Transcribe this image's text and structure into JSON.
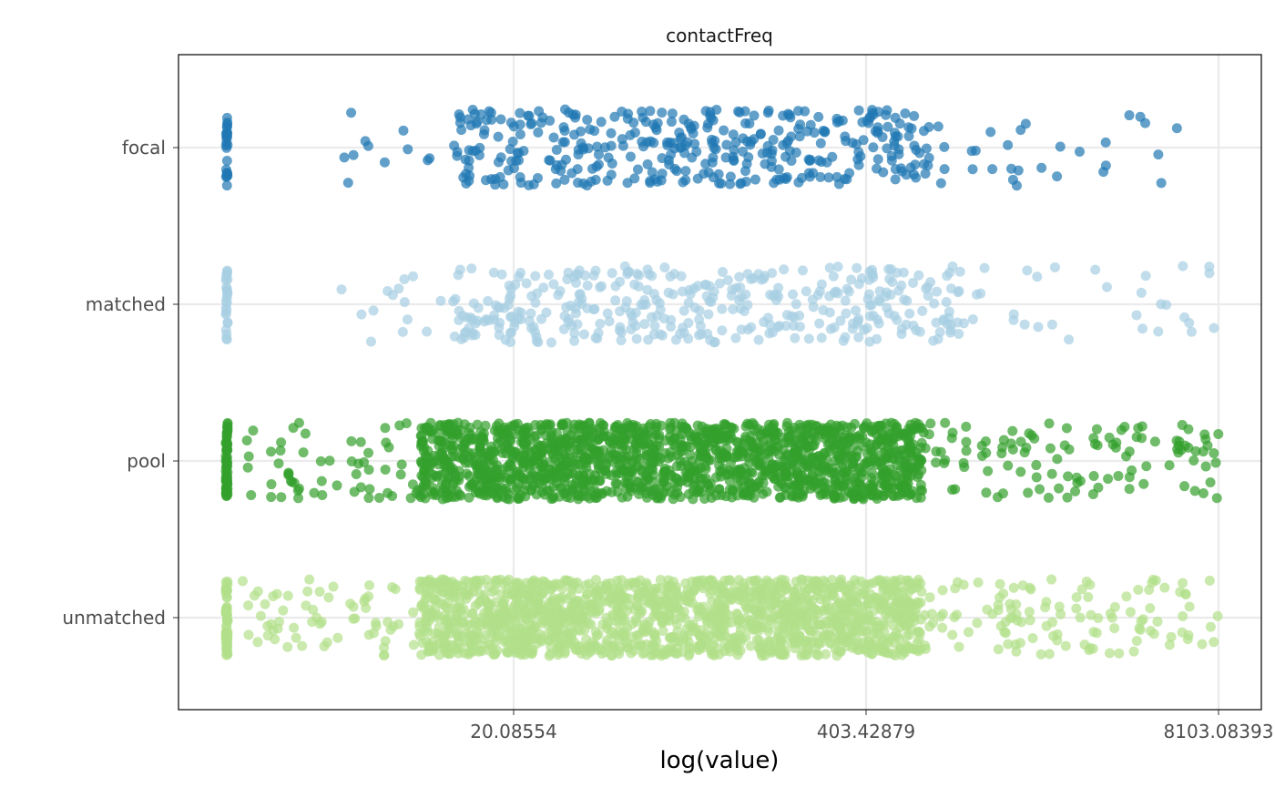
{
  "chart_data": {
    "type": "scatter",
    "title": "contactFreq",
    "xlabel": "log(value)",
    "ylabel": "",
    "x_scale": "log",
    "xlim": [
      1,
      8103.08393
    ],
    "x_ticks": [
      20.08554,
      403.42879,
      8103.08393
    ],
    "x_tick_labels": [
      "20.08554",
      "403.42879",
      "8103.08393"
    ],
    "categories": [
      "focal",
      "matched",
      "pool",
      "unmatched"
    ],
    "grid": true,
    "legend": "none",
    "series": [
      {
        "category": "focal",
        "color": "#1f78b4",
        "zero_count": 24,
        "points": 420,
        "range": [
          4.5,
          6500
        ],
        "core_range": [
          12,
          800
        ]
      },
      {
        "category": "matched",
        "color": "#a6cee3",
        "zero_count": 26,
        "points": 420,
        "range": [
          4.5,
          8103.08393
        ],
        "core_range": [
          12,
          900
        ]
      },
      {
        "category": "pool",
        "color": "#33a02c",
        "zero_count": 60,
        "points": 1800,
        "range": [
          2,
          8103.08393
        ],
        "core_range": [
          9,
          650
        ]
      },
      {
        "category": "unmatched",
        "color": "#b2df8a",
        "zero_count": 60,
        "points": 1800,
        "range": [
          2,
          8103.08393
        ],
        "core_range": [
          9,
          650
        ]
      }
    ]
  }
}
